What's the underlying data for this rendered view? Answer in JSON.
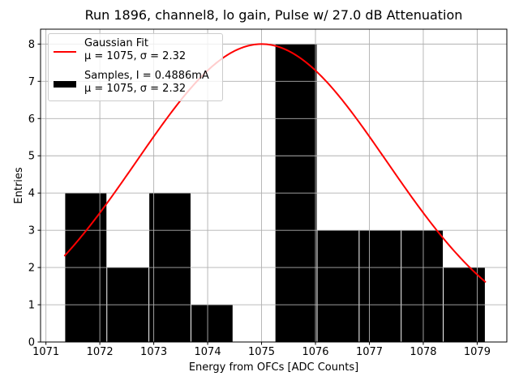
{
  "chart_data": {
    "type": "bar",
    "subtype": "histogram_with_gaussian_fit",
    "title": "Run 1896, channel8, lo gain, Pulse w/ 27.0 dB Attenuation",
    "xlabel": "Energy from OFCs [ADC Counts]",
    "ylabel": "Entries",
    "xlim": [
      1070.9,
      1079.55
    ],
    "ylim": [
      0,
      8.4
    ],
    "xticks": [
      1071,
      1072,
      1073,
      1074,
      1075,
      1076,
      1077,
      1078,
      1079
    ],
    "yticks": [
      0,
      1,
      2,
      3,
      4,
      5,
      6,
      7,
      8
    ],
    "grid": true,
    "legend_position": "upper left",
    "histogram": {
      "bin_edges": [
        1071.35,
        1072.13,
        1072.91,
        1073.69,
        1074.47,
        1075.25,
        1076.03,
        1076.81,
        1077.59,
        1078.37,
        1079.15
      ],
      "counts": [
        4,
        2,
        4,
        1,
        0,
        8,
        3,
        3,
        3,
        2
      ]
    },
    "gaussian_fit": {
      "mu": 1075,
      "sigma": 2.32,
      "amplitude": 8,
      "x_start": 1071.35,
      "x_end": 1079.15
    },
    "legend": {
      "entries": [
        {
          "id": "gaussian-fit",
          "swatch": "line",
          "swatch_color": "#ff0000",
          "label": "Gaussian Fit",
          "stats": "μ = 1075, σ = 2.32"
        },
        {
          "id": "samples",
          "swatch": "rect",
          "swatch_color": "#000000",
          "label": "Samples, I = 0.4886mA",
          "stats": "μ = 1075, σ = 2.32"
        }
      ]
    },
    "colors": {
      "bar": "#000000",
      "curve": "#ff0000",
      "grid": "#b0b0b0",
      "axes": "#000000",
      "background": "#ffffff"
    }
  }
}
